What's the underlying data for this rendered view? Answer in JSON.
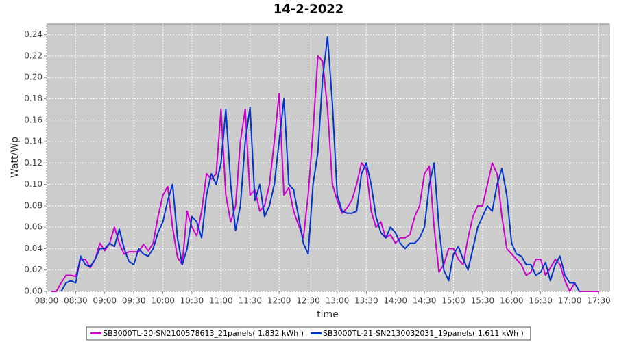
{
  "chart_data": {
    "type": "line",
    "title": "14-2-2022",
    "x_label": "time",
    "y_label": "Watt/Wp",
    "x": [
      "08:05",
      "08:10",
      "08:15",
      "08:20",
      "08:25",
      "08:30",
      "08:35",
      "08:40",
      "08:45",
      "08:50",
      "08:55",
      "09:00",
      "09:05",
      "09:10",
      "09:15",
      "09:20",
      "09:25",
      "09:30",
      "09:35",
      "09:40",
      "09:45",
      "09:50",
      "09:55",
      "10:00",
      "10:05",
      "10:10",
      "10:15",
      "10:20",
      "10:25",
      "10:30",
      "10:35",
      "10:40",
      "10:45",
      "10:50",
      "10:55",
      "11:00",
      "11:05",
      "11:10",
      "11:15",
      "11:20",
      "11:25",
      "11:30",
      "11:35",
      "11:40",
      "11:45",
      "11:50",
      "11:55",
      "12:00",
      "12:05",
      "12:10",
      "12:15",
      "12:20",
      "12:25",
      "12:30",
      "12:35",
      "12:40",
      "12:45",
      "12:50",
      "12:55",
      "13:00",
      "13:05",
      "13:10",
      "13:15",
      "13:20",
      "13:25",
      "13:30",
      "13:35",
      "13:40",
      "13:45",
      "13:50",
      "13:55",
      "14:00",
      "14:05",
      "14:10",
      "14:15",
      "14:20",
      "14:25",
      "14:30",
      "14:35",
      "14:40",
      "14:45",
      "14:50",
      "14:55",
      "15:00",
      "15:05",
      "15:10",
      "15:15",
      "15:20",
      "15:25",
      "15:30",
      "15:35",
      "15:40",
      "15:45",
      "15:50",
      "15:55",
      "16:00",
      "16:05",
      "16:10",
      "16:15",
      "16:20",
      "16:25",
      "16:30",
      "16:35",
      "16:40",
      "16:45",
      "16:50",
      "16:55",
      "17:00",
      "17:05",
      "17:10",
      "17:15",
      "17:20",
      "17:25",
      "17:30"
    ],
    "series": [
      {
        "name": "SB3000TL-20-SN2100578613_21panels( 1.832 kWh )",
        "color": "#cc00cc",
        "values": [
          0,
          0,
          0.008,
          0.015,
          0.015,
          0.014,
          0.03,
          0.03,
          0.022,
          0.03,
          0.045,
          0.038,
          0.045,
          0.06,
          0.045,
          0.035,
          0.037,
          0.037,
          0.037,
          0.044,
          0.038,
          0.045,
          0.07,
          0.09,
          0.098,
          0.06,
          0.032,
          0.025,
          0.075,
          0.06,
          0.052,
          0.075,
          0.11,
          0.105,
          0.11,
          0.17,
          0.09,
          0.065,
          0.08,
          0.14,
          0.17,
          0.09,
          0.095,
          0.075,
          0.08,
          0.1,
          0.14,
          0.185,
          0.09,
          0.097,
          0.075,
          0.062,
          0.05,
          0.09,
          0.15,
          0.22,
          0.215,
          0.17,
          0.1,
          0.085,
          0.073,
          0.078,
          0.085,
          0.1,
          0.12,
          0.115,
          0.075,
          0.06,
          0.065,
          0.05,
          0.053,
          0.045,
          0.05,
          0.05,
          0.053,
          0.07,
          0.08,
          0.11,
          0.117,
          0.06,
          0.018,
          0.025,
          0.04,
          0.04,
          0.03,
          0.025,
          0.05,
          0.07,
          0.08,
          0.08,
          0.1,
          0.12,
          0.11,
          0.07,
          0.04,
          0.035,
          0.03,
          0.025,
          0.015,
          0.018,
          0.03,
          0.03,
          0.015,
          0.022,
          0.03,
          0.025,
          0.01,
          0,
          0.008,
          0,
          0,
          0,
          0,
          0
        ]
      },
      {
        "name": "SB3000TL-21-SN2130032031_19panels( 1.611 kWh )",
        "color": "#0033cc",
        "values": [
          null,
          null,
          0,
          0.008,
          0.01,
          0.008,
          0.033,
          0.025,
          0.023,
          0.03,
          0.04,
          0.04,
          0.045,
          0.042,
          0.058,
          0.04,
          0.028,
          0.025,
          0.04,
          0.035,
          0.033,
          0.04,
          0.055,
          0.065,
          0.085,
          0.1,
          0.05,
          0.025,
          0.04,
          0.07,
          0.065,
          0.05,
          0.09,
          0.11,
          0.1,
          0.12,
          0.17,
          0.1,
          0.057,
          0.08,
          0.14,
          0.172,
          0.085,
          0.1,
          0.07,
          0.08,
          0.1,
          0.14,
          0.18,
          0.1,
          0.095,
          0.07,
          0.045,
          0.035,
          0.1,
          0.13,
          0.2,
          0.238,
          0.175,
          0.09,
          0.075,
          0.073,
          0.073,
          0.075,
          0.11,
          0.12,
          0.1,
          0.07,
          0.055,
          0.05,
          0.06,
          0.055,
          0.045,
          0.04,
          0.045,
          0.045,
          0.05,
          0.06,
          0.1,
          0.12,
          0.06,
          0.02,
          0.01,
          0.035,
          0.042,
          0.03,
          0.02,
          0.04,
          0.06,
          0.07,
          0.08,
          0.075,
          0.1,
          0.115,
          0.09,
          0.045,
          0.035,
          0.033,
          0.025,
          0.025,
          0.015,
          0.018,
          0.027,
          0.01,
          0.025,
          0.033,
          0.015,
          0.008,
          0.008,
          0,
          null,
          null,
          null,
          null
        ]
      }
    ],
    "xlim": [
      "08:00",
      "17:41"
    ],
    "xticks": [
      "08:00",
      "08:30",
      "09:00",
      "09:30",
      "10:00",
      "10:30",
      "11:00",
      "11:30",
      "12:00",
      "12:30",
      "13:00",
      "13:30",
      "14:00",
      "14:30",
      "15:00",
      "15:30",
      "16:00",
      "16:30",
      "17:00",
      "17:30"
    ],
    "ylim": [
      0,
      0.25
    ],
    "yticks": [
      {
        "value": 0,
        "label": "0.00"
      },
      {
        "value": 0.02,
        "label": "0.02"
      },
      {
        "value": 0.04,
        "label": "0.04"
      },
      {
        "value": 0.06,
        "label": "0.06"
      },
      {
        "value": 0.08,
        "label": "0.08"
      },
      {
        "value": 0.1,
        "label": "0.10"
      },
      {
        "value": 0.12,
        "label": "0.12"
      },
      {
        "value": 0.14,
        "label": "0.14"
      },
      {
        "value": 0.16,
        "label": "0.16"
      },
      {
        "value": 0.18,
        "label": "0.18"
      },
      {
        "value": 0.2,
        "label": "0.20"
      },
      {
        "value": 0.22,
        "label": "0.22"
      },
      {
        "value": 0.24,
        "label": "0.24"
      }
    ],
    "grid": true,
    "legend": "bottom"
  }
}
